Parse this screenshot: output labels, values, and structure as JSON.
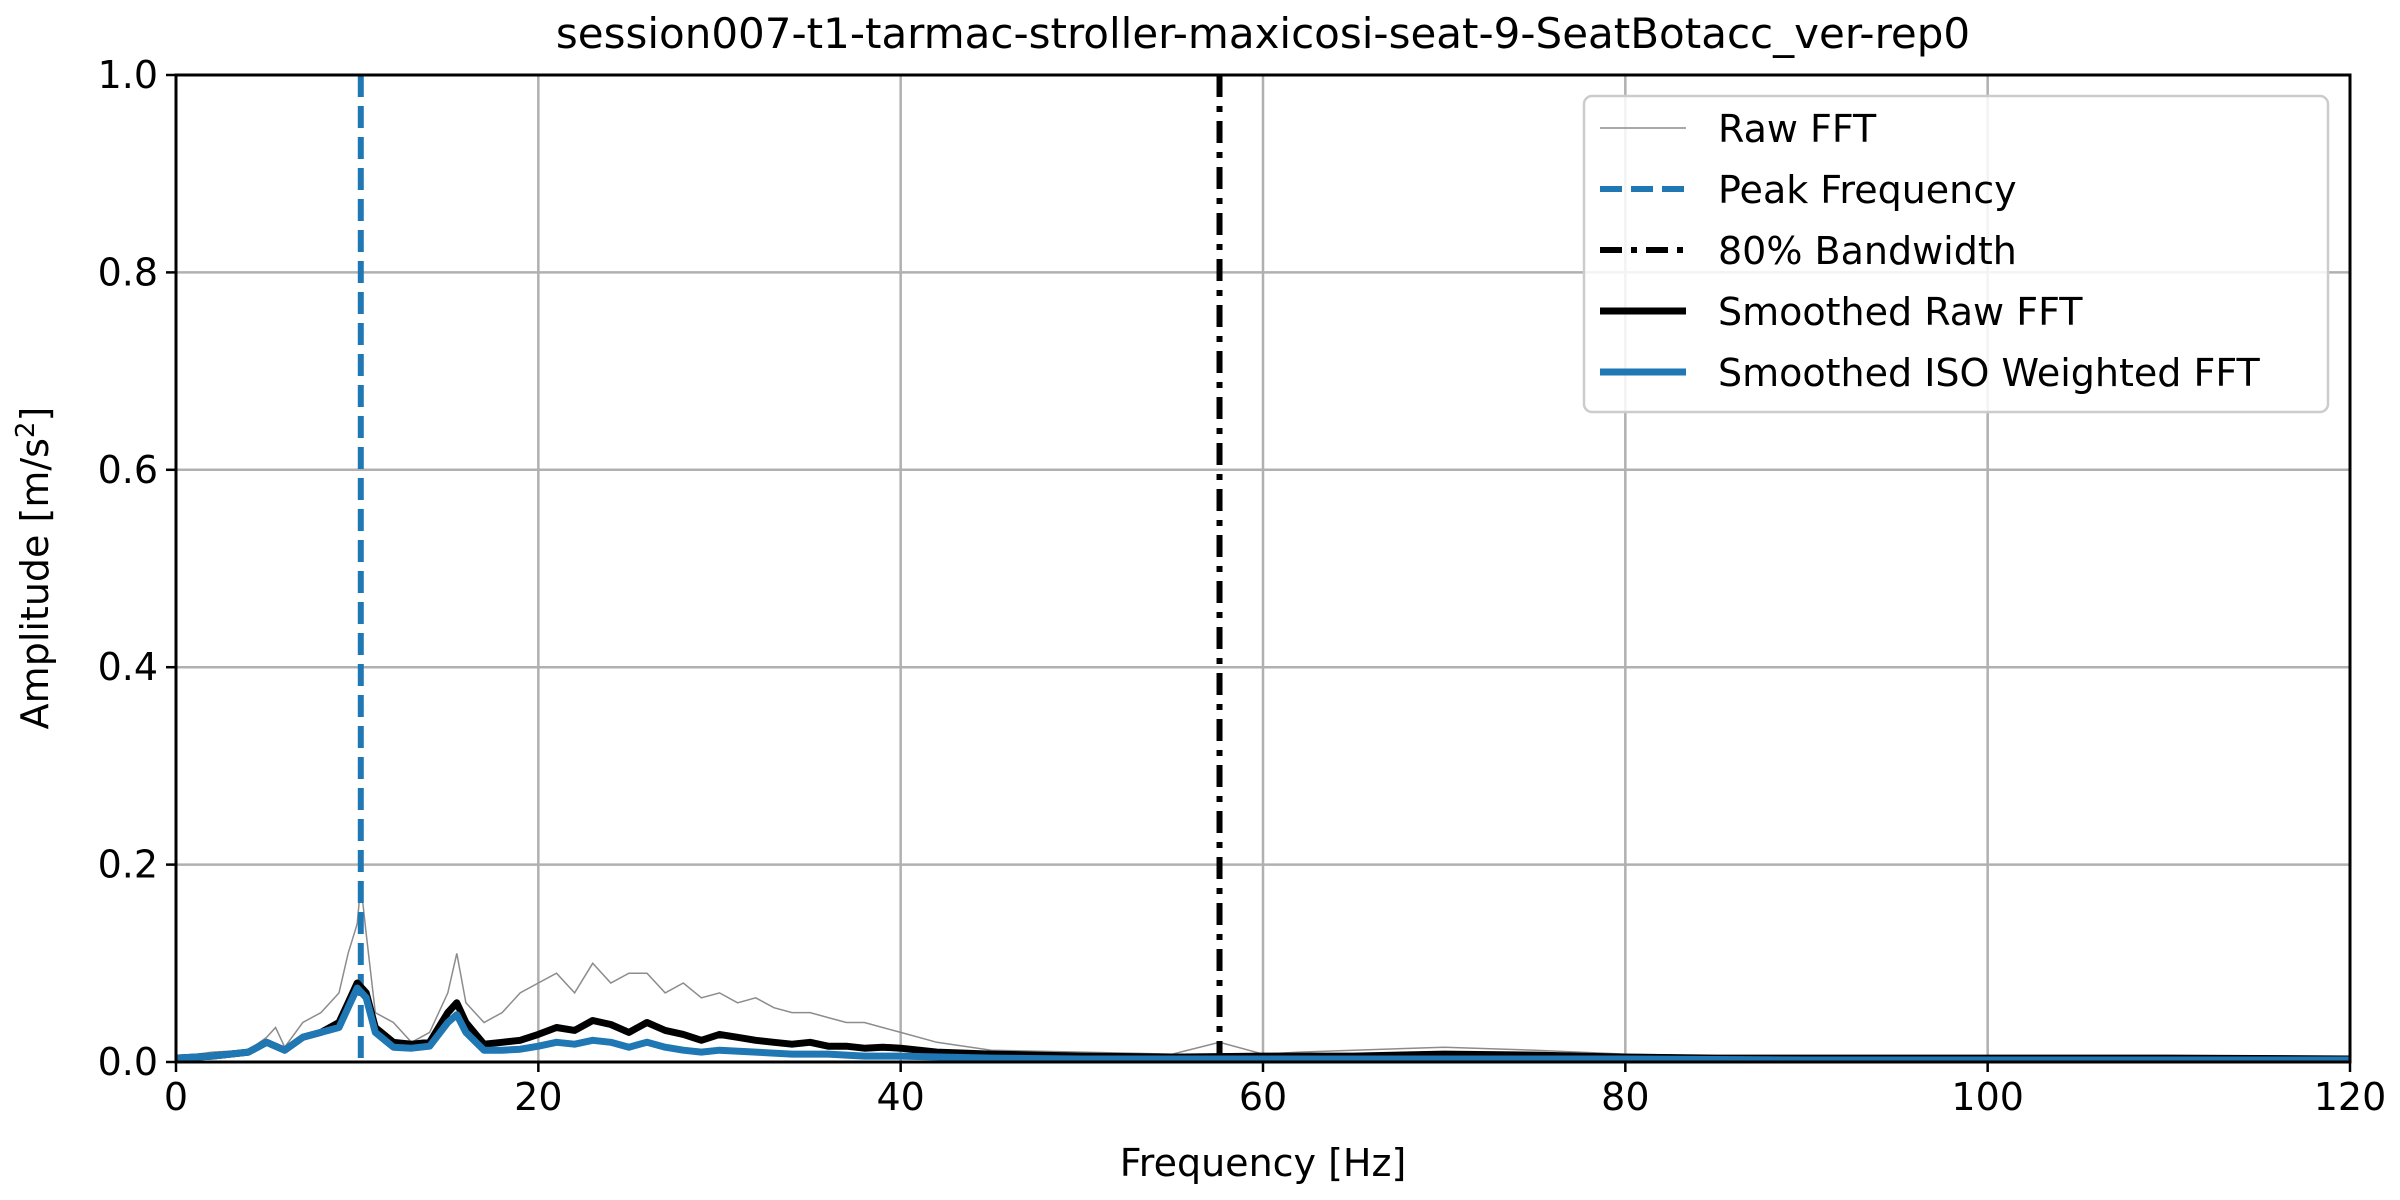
{
  "chart_data": {
    "type": "line",
    "title": "session007-t1-tarmac-stroller-maxicosi-seat-9-SeatBotacc_ver-rep0",
    "xlabel": "Frequency [Hz]",
    "ylabel_main": "Amplitude [m/s",
    "ylabel_sup": "2",
    "ylabel_end": "]",
    "xlim": [
      0,
      120
    ],
    "ylim": [
      0,
      1.0
    ],
    "xticks": [
      "0",
      "20",
      "40",
      "60",
      "80",
      "100",
      "120"
    ],
    "yticks": [
      "0.0",
      "0.2",
      "0.4",
      "0.6",
      "0.8",
      "1.0"
    ],
    "grid": true,
    "legend_position": "top-right",
    "peak_frequency": 10.2,
    "bandwidth_80": 57.6,
    "series": [
      {
        "name": "Raw FFT",
        "style": "thin-gray",
        "color": "#8c8c8c",
        "x": [
          0,
          2,
          4,
          5,
          5.5,
          6,
          7,
          8,
          8.5,
          9,
          9.5,
          10,
          10.2,
          10.5,
          11,
          12,
          13,
          14,
          15,
          15.5,
          16,
          17,
          18,
          19,
          20,
          21,
          22,
          23,
          24,
          25,
          26,
          27,
          28,
          29,
          30,
          31,
          32,
          33,
          34,
          35,
          36,
          37,
          38,
          39,
          40,
          42,
          45,
          50,
          55,
          57.6,
          60,
          62,
          65,
          70,
          75,
          80,
          85,
          90,
          95,
          100,
          105,
          110,
          115,
          120
        ],
        "y": [
          0.005,
          0.01,
          0.012,
          0.025,
          0.035,
          0.015,
          0.04,
          0.05,
          0.06,
          0.07,
          0.11,
          0.14,
          0.18,
          0.13,
          0.05,
          0.04,
          0.02,
          0.03,
          0.07,
          0.11,
          0.06,
          0.04,
          0.05,
          0.07,
          0.08,
          0.09,
          0.07,
          0.1,
          0.08,
          0.09,
          0.09,
          0.07,
          0.08,
          0.065,
          0.07,
          0.06,
          0.065,
          0.055,
          0.05,
          0.05,
          0.045,
          0.04,
          0.04,
          0.035,
          0.03,
          0.02,
          0.012,
          0.01,
          0.008,
          0.02,
          0.008,
          0.01,
          0.012,
          0.015,
          0.012,
          0.008,
          0.006,
          0.005,
          0.005,
          0.005,
          0.004,
          0.004,
          0.004,
          0.004
        ]
      },
      {
        "name": "Peak Frequency",
        "style": "dashed-blue",
        "color": "#1f77b4"
      },
      {
        "name": "80% Bandwidth",
        "style": "dashdot-black",
        "color": "#000000"
      },
      {
        "name": "Smoothed Raw FFT",
        "style": "thick-black",
        "color": "#000000",
        "x": [
          0,
          2,
          4,
          5,
          6,
          7,
          8,
          9,
          9.5,
          10,
          10.5,
          11,
          12,
          13,
          14,
          15,
          15.5,
          16,
          17,
          18,
          19,
          20,
          21,
          22,
          23,
          24,
          25,
          26,
          27,
          28,
          29,
          30,
          31,
          32,
          33,
          34,
          35,
          36,
          37,
          38,
          39,
          40,
          42,
          45,
          50,
          55,
          60,
          65,
          70,
          75,
          80,
          85,
          90,
          95,
          100,
          110,
          120
        ],
        "y": [
          0.004,
          0.006,
          0.01,
          0.02,
          0.012,
          0.025,
          0.03,
          0.04,
          0.06,
          0.08,
          0.07,
          0.035,
          0.02,
          0.018,
          0.02,
          0.05,
          0.06,
          0.04,
          0.018,
          0.02,
          0.022,
          0.028,
          0.035,
          0.032,
          0.042,
          0.038,
          0.03,
          0.04,
          0.032,
          0.028,
          0.022,
          0.028,
          0.025,
          0.022,
          0.02,
          0.018,
          0.02,
          0.016,
          0.016,
          0.014,
          0.015,
          0.014,
          0.01,
          0.008,
          0.006,
          0.005,
          0.006,
          0.006,
          0.008,
          0.007,
          0.005,
          0.004,
          0.004,
          0.004,
          0.004,
          0.004,
          0.003
        ]
      },
      {
        "name": "Smoothed ISO Weighted FFT",
        "style": "thick-blue",
        "color": "#1f77b4",
        "x": [
          0,
          2,
          4,
          5,
          6,
          7,
          8,
          9,
          9.5,
          10,
          10.5,
          11,
          12,
          13,
          14,
          15,
          15.5,
          16,
          17,
          18,
          19,
          20,
          21,
          22,
          23,
          24,
          25,
          26,
          27,
          28,
          29,
          30,
          32,
          34,
          36,
          38,
          40,
          45,
          50,
          60,
          70,
          80,
          90,
          100,
          110,
          120
        ],
        "y": [
          0.004,
          0.006,
          0.01,
          0.02,
          0.012,
          0.025,
          0.03,
          0.035,
          0.055,
          0.075,
          0.065,
          0.03,
          0.015,
          0.014,
          0.016,
          0.04,
          0.048,
          0.03,
          0.012,
          0.012,
          0.013,
          0.016,
          0.02,
          0.018,
          0.022,
          0.02,
          0.015,
          0.02,
          0.015,
          0.012,
          0.01,
          0.012,
          0.01,
          0.008,
          0.008,
          0.006,
          0.006,
          0.004,
          0.003,
          0.003,
          0.003,
          0.003,
          0.002,
          0.002,
          0.002,
          0.002
        ]
      }
    ]
  }
}
